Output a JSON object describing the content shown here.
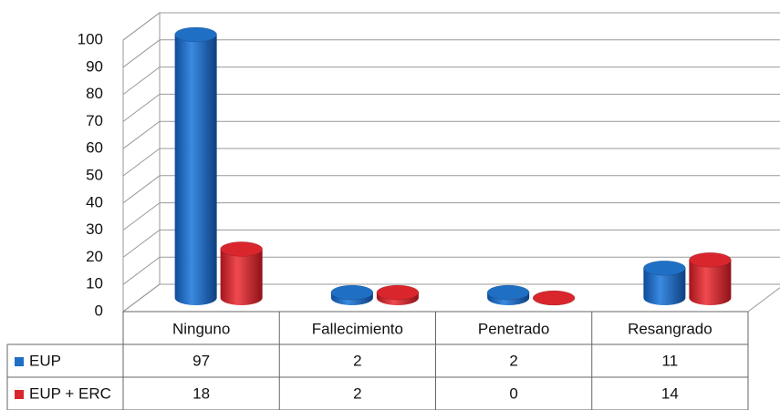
{
  "chart_data": {
    "type": "bar3d",
    "categories": [
      "Ninguno",
      "Fallecimiento",
      "Penetrado",
      "Resangrado"
    ],
    "series": [
      {
        "name": "EUP",
        "color": "#1f6fc5",
        "values": [
          97,
          2,
          2,
          11
        ]
      },
      {
        "name": "EUP + ERC",
        "color": "#d9262c",
        "values": [
          18,
          2,
          0,
          14
        ]
      }
    ],
    "ylim": [
      0,
      100
    ],
    "yticks": [
      0,
      10,
      20,
      30,
      40,
      50,
      60,
      70,
      80,
      90,
      100
    ],
    "grid": true
  }
}
